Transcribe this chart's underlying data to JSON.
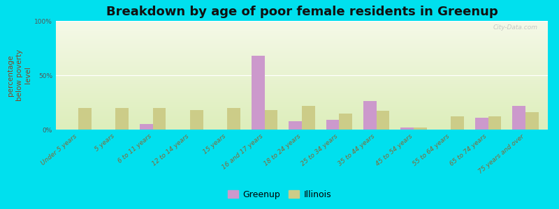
{
  "title": "Breakdown by age of poor female residents in Greenup",
  "ylabel": "percentage\nbelow poverty\nlevel",
  "categories": [
    "Under 5 years",
    "5 years",
    "6 to 11 years",
    "12 to 14 years",
    "15 years",
    "16 and 17 years",
    "18 to 24 years",
    "25 to 34 years",
    "35 to 44 years",
    "45 to 54 years",
    "55 to 64 years",
    "65 to 74 years",
    "75 years and over"
  ],
  "greenup_values": [
    0,
    0,
    5,
    0,
    0,
    68,
    8,
    9,
    26,
    2,
    0,
    11,
    22
  ],
  "illinois_values": [
    20,
    20,
    20,
    18,
    20,
    18,
    22,
    15,
    17,
    2,
    12,
    12,
    16
  ],
  "greenup_color": "#cc99cc",
  "illinois_color": "#cccc88",
  "figure_bg": "#00e0ee",
  "plot_bg_top": "#f5f9e8",
  "plot_bg_bottom": "#ddeebb",
  "ylim": [
    0,
    100
  ],
  "yticks": [
    0,
    50,
    100
  ],
  "ytick_labels": [
    "0%",
    "50%",
    "100%"
  ],
  "title_fontsize": 13,
  "axis_label_fontsize": 7.5,
  "tick_label_fontsize": 6.5,
  "legend_fontsize": 9,
  "bar_width": 0.35,
  "watermark": "City-Data.com"
}
